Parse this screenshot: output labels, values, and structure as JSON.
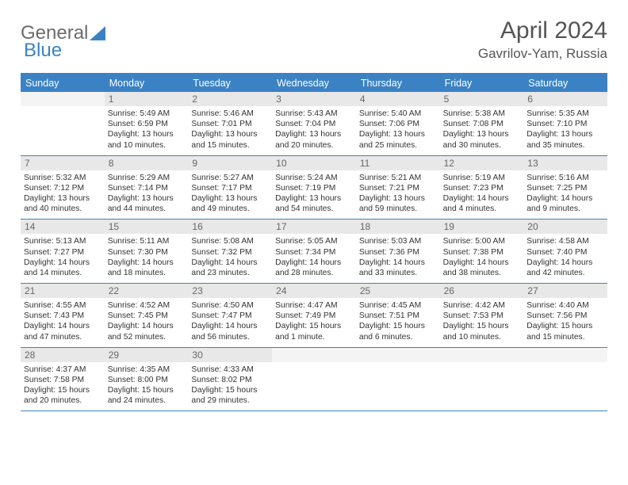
{
  "logo": {
    "text1": "General",
    "text2": "Blue"
  },
  "title": "April 2024",
  "location": "Gavrilov-Yam, Russia",
  "day_names": [
    "Sunday",
    "Monday",
    "Tuesday",
    "Wednesday",
    "Thursday",
    "Friday",
    "Saturday"
  ],
  "colors": {
    "accent": "#3b82c4",
    "header_gray": "#e8e8e8"
  },
  "weeks": [
    [
      {
        "n": "",
        "empty": true
      },
      {
        "n": "1",
        "sr": "5:49 AM",
        "ss": "6:59 PM",
        "dl": "13 hours and 10 minutes."
      },
      {
        "n": "2",
        "sr": "5:46 AM",
        "ss": "7:01 PM",
        "dl": "13 hours and 15 minutes."
      },
      {
        "n": "3",
        "sr": "5:43 AM",
        "ss": "7:04 PM",
        "dl": "13 hours and 20 minutes."
      },
      {
        "n": "4",
        "sr": "5:40 AM",
        "ss": "7:06 PM",
        "dl": "13 hours and 25 minutes."
      },
      {
        "n": "5",
        "sr": "5:38 AM",
        "ss": "7:08 PM",
        "dl": "13 hours and 30 minutes."
      },
      {
        "n": "6",
        "sr": "5:35 AM",
        "ss": "7:10 PM",
        "dl": "13 hours and 35 minutes."
      }
    ],
    [
      {
        "n": "7",
        "sr": "5:32 AM",
        "ss": "7:12 PM",
        "dl": "13 hours and 40 minutes."
      },
      {
        "n": "8",
        "sr": "5:29 AM",
        "ss": "7:14 PM",
        "dl": "13 hours and 44 minutes."
      },
      {
        "n": "9",
        "sr": "5:27 AM",
        "ss": "7:17 PM",
        "dl": "13 hours and 49 minutes."
      },
      {
        "n": "10",
        "sr": "5:24 AM",
        "ss": "7:19 PM",
        "dl": "13 hours and 54 minutes."
      },
      {
        "n": "11",
        "sr": "5:21 AM",
        "ss": "7:21 PM",
        "dl": "13 hours and 59 minutes."
      },
      {
        "n": "12",
        "sr": "5:19 AM",
        "ss": "7:23 PM",
        "dl": "14 hours and 4 minutes."
      },
      {
        "n": "13",
        "sr": "5:16 AM",
        "ss": "7:25 PM",
        "dl": "14 hours and 9 minutes."
      }
    ],
    [
      {
        "n": "14",
        "sr": "5:13 AM",
        "ss": "7:27 PM",
        "dl": "14 hours and 14 minutes."
      },
      {
        "n": "15",
        "sr": "5:11 AM",
        "ss": "7:30 PM",
        "dl": "14 hours and 18 minutes."
      },
      {
        "n": "16",
        "sr": "5:08 AM",
        "ss": "7:32 PM",
        "dl": "14 hours and 23 minutes."
      },
      {
        "n": "17",
        "sr": "5:05 AM",
        "ss": "7:34 PM",
        "dl": "14 hours and 28 minutes."
      },
      {
        "n": "18",
        "sr": "5:03 AM",
        "ss": "7:36 PM",
        "dl": "14 hours and 33 minutes."
      },
      {
        "n": "19",
        "sr": "5:00 AM",
        "ss": "7:38 PM",
        "dl": "14 hours and 38 minutes."
      },
      {
        "n": "20",
        "sr": "4:58 AM",
        "ss": "7:40 PM",
        "dl": "14 hours and 42 minutes."
      }
    ],
    [
      {
        "n": "21",
        "sr": "4:55 AM",
        "ss": "7:43 PM",
        "dl": "14 hours and 47 minutes."
      },
      {
        "n": "22",
        "sr": "4:52 AM",
        "ss": "7:45 PM",
        "dl": "14 hours and 52 minutes."
      },
      {
        "n": "23",
        "sr": "4:50 AM",
        "ss": "7:47 PM",
        "dl": "14 hours and 56 minutes."
      },
      {
        "n": "24",
        "sr": "4:47 AM",
        "ss": "7:49 PM",
        "dl": "15 hours and 1 minute."
      },
      {
        "n": "25",
        "sr": "4:45 AM",
        "ss": "7:51 PM",
        "dl": "15 hours and 6 minutes."
      },
      {
        "n": "26",
        "sr": "4:42 AM",
        "ss": "7:53 PM",
        "dl": "15 hours and 10 minutes."
      },
      {
        "n": "27",
        "sr": "4:40 AM",
        "ss": "7:56 PM",
        "dl": "15 hours and 15 minutes."
      }
    ],
    [
      {
        "n": "28",
        "sr": "4:37 AM",
        "ss": "7:58 PM",
        "dl": "15 hours and 20 minutes."
      },
      {
        "n": "29",
        "sr": "4:35 AM",
        "ss": "8:00 PM",
        "dl": "15 hours and 24 minutes."
      },
      {
        "n": "30",
        "sr": "4:33 AM",
        "ss": "8:02 PM",
        "dl": "15 hours and 29 minutes."
      },
      {
        "n": "",
        "empty": true
      },
      {
        "n": "",
        "empty": true
      },
      {
        "n": "",
        "empty": true
      },
      {
        "n": "",
        "empty": true
      }
    ]
  ],
  "labels": {
    "sunrise": "Sunrise: ",
    "sunset": "Sunset: ",
    "daylight": "Daylight: "
  }
}
